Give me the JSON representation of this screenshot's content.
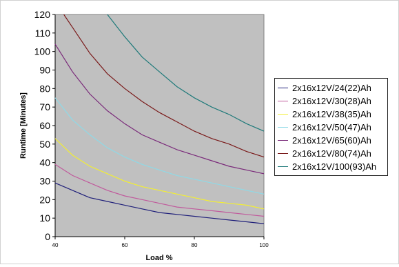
{
  "chart_data": {
    "type": "line",
    "title": "",
    "xlabel": "Load %",
    "ylabel": "Runtime [Minutes]",
    "xlim": [
      40,
      100
    ],
    "ylim": [
      0,
      120
    ],
    "xticks": [
      40,
      60,
      80,
      100
    ],
    "yticks": [
      0,
      10,
      20,
      30,
      40,
      50,
      60,
      70,
      80,
      90,
      100,
      110,
      120
    ],
    "grid": false,
    "legend_position": "right",
    "plot_background": "#c0c0c0",
    "series": [
      {
        "name": "2x16x12V/24(22)Ah",
        "color": "#1f1f7a",
        "x": [
          40,
          45,
          50,
          55,
          60,
          65,
          70,
          75,
          80,
          85,
          90,
          95,
          100
        ],
        "y": [
          29,
          25,
          21,
          19,
          17,
          15,
          13,
          12,
          11,
          10,
          9,
          8,
          7
        ]
      },
      {
        "name": "2x16x12V/30(28)Ah",
        "color": "#c05a9c",
        "x": [
          40,
          45,
          50,
          55,
          60,
          65,
          70,
          75,
          80,
          85,
          90,
          95,
          100
        ],
        "y": [
          39,
          33,
          29,
          25,
          22,
          20,
          18,
          16,
          15,
          14,
          13,
          12,
          11
        ]
      },
      {
        "name": "2x16x12V/38(35)Ah",
        "color": "#f2ee33",
        "x": [
          40,
          45,
          50,
          55,
          60,
          65,
          70,
          75,
          80,
          85,
          90,
          95,
          100
        ],
        "y": [
          53,
          44,
          38,
          34,
          30,
          27,
          25,
          23,
          21,
          19,
          18,
          17,
          15
        ]
      },
      {
        "name": "2x16x12V/50(47)Ah",
        "color": "#8fd9e6",
        "x": [
          40,
          45,
          50,
          55,
          60,
          65,
          70,
          75,
          80,
          85,
          90,
          95,
          100
        ],
        "y": [
          75,
          63,
          55,
          48,
          43,
          39,
          36,
          33,
          31,
          29,
          27,
          25,
          23
        ]
      },
      {
        "name": "2x16x12V/65(60)Ah",
        "color": "#7a2a7a",
        "x": [
          40,
          45,
          50,
          55,
          60,
          65,
          70,
          75,
          80,
          85,
          90,
          95,
          100
        ],
        "y": [
          104,
          89,
          77,
          68,
          61,
          55,
          51,
          47,
          44,
          41,
          38,
          36,
          34
        ]
      },
      {
        "name": "2x16x12V/80(74)Ah",
        "color": "#7a1a1a",
        "x": [
          42.5,
          45,
          50,
          55,
          60,
          65,
          70,
          75,
          80,
          85,
          90,
          95,
          100
        ],
        "y": [
          120,
          113,
          99,
          88,
          80,
          73,
          67,
          62,
          57,
          53,
          50,
          46,
          43
        ]
      },
      {
        "name": "2x16x12V/100(93)Ah",
        "color": "#1f7a7a",
        "x": [
          55,
          60,
          65,
          70,
          75,
          80,
          85,
          90,
          95,
          100
        ],
        "y": [
          120,
          108,
          97,
          89,
          81,
          75,
          70,
          66,
          61,
          57
        ]
      }
    ]
  }
}
